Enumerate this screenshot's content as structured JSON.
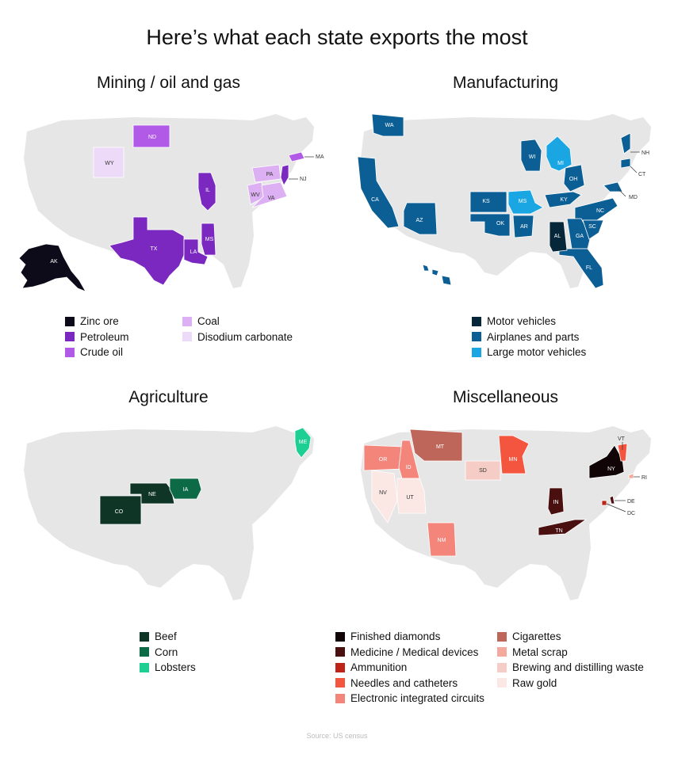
{
  "title": "Here’s what each state exports the most",
  "source": "Source: US census",
  "map_base_color": "#e6e6e6",
  "panels": {
    "mining": {
      "title": "Mining / oil and gas",
      "legend_left": [
        {
          "label": "Zinc ore",
          "color": "#0d0a1a"
        },
        {
          "label": "Petroleum",
          "color": "#7a28c0"
        },
        {
          "label": "Crude oil",
          "color": "#b25ae8"
        }
      ],
      "legend_right": [
        {
          "label": "Coal",
          "color": "#dcb0f2"
        },
        {
          "label": "Disodium carbonate",
          "color": "#ecdaf8"
        }
      ],
      "states": [
        "AK",
        "TX",
        "LA",
        "MS",
        "IL",
        "NJ",
        "ND",
        "MA",
        "PA",
        "WV",
        "VA",
        "WY"
      ]
    },
    "manufacturing": {
      "title": "Manufacturing",
      "legend_left": [
        {
          "label": "Motor vehicles",
          "color": "#06263a"
        },
        {
          "label": "Airplanes and parts",
          "color": "#0c5f95"
        },
        {
          "label": "Large motor vehicles",
          "color": "#19a6e3"
        }
      ],
      "states": [
        "WA",
        "CA",
        "AZ",
        "KS",
        "OK",
        "AR",
        "WI",
        "OH",
        "KY",
        "NC",
        "GA",
        "SC",
        "FL",
        "AL",
        "MI",
        "MS",
        "NH",
        "CT",
        "MD"
      ]
    },
    "agriculture": {
      "title": "Agriculture",
      "legend_left": [
        {
          "label": "Beef",
          "color": "#0e3526"
        },
        {
          "label": "Corn",
          "color": "#0c6a47"
        },
        {
          "label": "Lobsters",
          "color": "#1ecf93"
        }
      ],
      "states": [
        "CO",
        "NE",
        "IA",
        "ME"
      ]
    },
    "misc": {
      "title": "Miscellaneous",
      "legend_left": [
        {
          "label": "Finished diamonds",
          "color": "#100406"
        },
        {
          "label": "Medicine / Medical devices",
          "color": "#4a1010"
        },
        {
          "label": "Ammunition",
          "color": "#be2317"
        },
        {
          "label": "Needles and catheters",
          "color": "#f4553e"
        },
        {
          "label": "Electronic integrated circuits",
          "color": "#f3857a"
        }
      ],
      "legend_right": [
        {
          "label": "Cigarettes",
          "color": "#bf665a"
        },
        {
          "label": "Metal scrap",
          "color": "#f4a99c"
        },
        {
          "label": "Brewing and distilling waste",
          "color": "#f6cdc6"
        },
        {
          "label": "Raw gold",
          "color": "#fbe7e3"
        }
      ],
      "states": [
        "OR",
        "ID",
        "MT",
        "SD",
        "MN",
        "NV",
        "UT",
        "NM",
        "IN",
        "TN",
        "NY",
        "VT",
        "RI",
        "DE",
        "DC"
      ]
    }
  }
}
